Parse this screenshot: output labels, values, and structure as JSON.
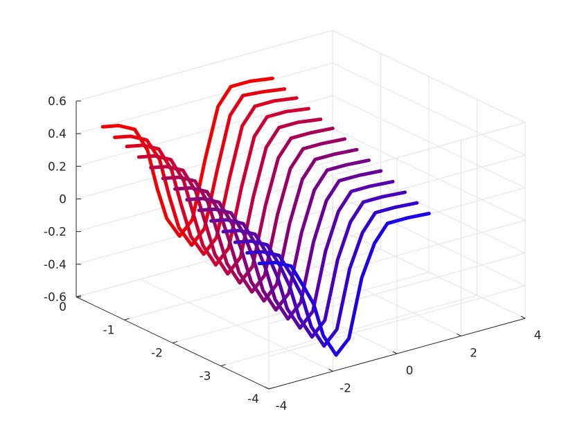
{
  "chart_data": {
    "type": "line",
    "projection": "3d",
    "grid": true,
    "title": "",
    "xlabel": "",
    "ylabel": "",
    "zlabel": "",
    "xlim": [
      -4,
      0
    ],
    "ylim": [
      -4,
      4
    ],
    "zlim": [
      -0.6,
      0.6
    ],
    "x_ticks": [
      {
        "value": 0,
        "label": "0"
      },
      {
        "value": -1,
        "label": "-1"
      },
      {
        "value": -2,
        "label": "-2"
      },
      {
        "value": -3,
        "label": "-3"
      },
      {
        "value": -4,
        "label": "-4"
      }
    ],
    "y_ticks": [
      {
        "value": -4,
        "label": "-4"
      },
      {
        "value": -2,
        "label": "-2"
      },
      {
        "value": 0,
        "label": "0"
      },
      {
        "value": 2,
        "label": "2"
      },
      {
        "value": 4,
        "label": "4"
      }
    ],
    "z_ticks": [
      {
        "value": -0.6,
        "label": "-0.6"
      },
      {
        "value": -0.4,
        "label": "-0.4"
      },
      {
        "value": -0.2,
        "label": "-0.2"
      },
      {
        "value": 0,
        "label": "0"
      },
      {
        "value": 0.2,
        "label": "0.2"
      },
      {
        "value": 0.4,
        "label": "0.4"
      },
      {
        "value": 0.6,
        "label": "0.6"
      }
    ],
    "color_map": {
      "start": "#ff0000",
      "end": "#0000ff"
    },
    "series": [
      {
        "color": "#f00000",
        "points": [
          [
            -0.55,
            -4,
            0.52
          ],
          [
            -0.55,
            -3.5,
            0.5
          ],
          [
            -0.55,
            -3,
            0.45
          ],
          [
            -0.55,
            -2.6,
            0.3
          ],
          [
            -0.55,
            -2.3,
            0.05
          ],
          [
            -0.55,
            -2,
            -0.15
          ],
          [
            -0.55,
            -1.6,
            -0.28
          ],
          [
            -0.55,
            -1.2,
            -0.2
          ],
          [
            -0.55,
            -0.8,
            0.15
          ],
          [
            -0.55,
            -0.4,
            0.45
          ],
          [
            -0.55,
            0,
            0.55
          ],
          [
            -0.55,
            0.6,
            0.55
          ],
          [
            -0.55,
            1.3,
            0.53
          ]
        ]
      },
      {
        "color": "#e6000f",
        "points": [
          [
            -0.8,
            -4,
            0.49
          ],
          [
            -0.8,
            -3.5,
            0.47
          ],
          [
            -0.8,
            -3,
            0.42
          ],
          [
            -0.8,
            -2.6,
            0.28
          ],
          [
            -0.8,
            -2.3,
            0.04
          ],
          [
            -0.8,
            -2,
            -0.17
          ],
          [
            -0.8,
            -1.6,
            -0.3
          ],
          [
            -0.8,
            -1.2,
            -0.22
          ],
          [
            -0.8,
            -0.8,
            0.12
          ],
          [
            -0.8,
            -0.4,
            0.43
          ],
          [
            -0.8,
            0,
            0.53
          ],
          [
            -0.8,
            0.6,
            0.52
          ],
          [
            -0.8,
            1.3,
            0.5
          ]
        ]
      },
      {
        "color": "#db0020",
        "points": [
          [
            -1.05,
            -4,
            0.47
          ],
          [
            -1.05,
            -3.5,
            0.45
          ],
          [
            -1.05,
            -3,
            0.4
          ],
          [
            -1.05,
            -2.6,
            0.25
          ],
          [
            -1.05,
            -2.3,
            0.02
          ],
          [
            -1.05,
            -2,
            -0.19
          ],
          [
            -1.05,
            -1.6,
            -0.32
          ],
          [
            -1.05,
            -1.2,
            -0.24
          ],
          [
            -1.05,
            -0.8,
            0.1
          ],
          [
            -1.05,
            -0.4,
            0.4
          ],
          [
            -1.05,
            0,
            0.5
          ],
          [
            -1.05,
            0.6,
            0.5
          ],
          [
            -1.05,
            1.3,
            0.48
          ]
        ]
      },
      {
        "color": "#cc0033",
        "points": [
          [
            -1.3,
            -4,
            0.44
          ],
          [
            -1.3,
            -3.5,
            0.42
          ],
          [
            -1.3,
            -3,
            0.37
          ],
          [
            -1.3,
            -2.6,
            0.22
          ],
          [
            -1.3,
            -2.3,
            0
          ],
          [
            -1.3,
            -2,
            -0.21
          ],
          [
            -1.3,
            -1.6,
            -0.35
          ],
          [
            -1.3,
            -1.2,
            -0.27
          ],
          [
            -1.3,
            -0.8,
            0.08
          ],
          [
            -1.3,
            -0.4,
            0.37
          ],
          [
            -1.3,
            0,
            0.47
          ],
          [
            -1.3,
            0.6,
            0.47
          ],
          [
            -1.3,
            1.3,
            0.45
          ]
        ]
      },
      {
        "color": "#bb0044",
        "points": [
          [
            -1.55,
            -4,
            0.41
          ],
          [
            -1.55,
            -3.5,
            0.39
          ],
          [
            -1.55,
            -3,
            0.34
          ],
          [
            -1.55,
            -2.6,
            0.19
          ],
          [
            -1.55,
            -2.3,
            -0.02
          ],
          [
            -1.55,
            -2,
            -0.23
          ],
          [
            -1.55,
            -1.6,
            -0.37
          ],
          [
            -1.55,
            -1.2,
            -0.29
          ],
          [
            -1.55,
            -0.8,
            0.06
          ],
          [
            -1.55,
            -0.4,
            0.34
          ],
          [
            -1.55,
            0,
            0.44
          ],
          [
            -1.55,
            0.6,
            0.44
          ],
          [
            -1.55,
            1.3,
            0.42
          ]
        ]
      },
      {
        "color": "#aa0055",
        "points": [
          [
            -1.8,
            -4,
            0.38
          ],
          [
            -1.8,
            -3.5,
            0.36
          ],
          [
            -1.8,
            -3,
            0.31
          ],
          [
            -1.8,
            -2.6,
            0.16
          ],
          [
            -1.8,
            -2.3,
            -0.04
          ],
          [
            -1.8,
            -2,
            -0.25
          ],
          [
            -1.8,
            -1.6,
            -0.39
          ],
          [
            -1.8,
            -1.2,
            -0.31
          ],
          [
            -1.8,
            -0.8,
            0.04
          ],
          [
            -1.8,
            -0.4,
            0.31
          ],
          [
            -1.8,
            0,
            0.41
          ],
          [
            -1.8,
            0.6,
            0.41
          ],
          [
            -1.8,
            1.3,
            0.4
          ]
        ]
      },
      {
        "color": "#990066",
        "points": [
          [
            -2.05,
            -4,
            0.35
          ],
          [
            -2.05,
            -3.5,
            0.33
          ],
          [
            -2.05,
            -3,
            0.28
          ],
          [
            -2.05,
            -2.6,
            0.13
          ],
          [
            -2.05,
            -2.3,
            -0.06
          ],
          [
            -2.05,
            -2,
            -0.27
          ],
          [
            -2.05,
            -1.6,
            -0.41
          ],
          [
            -2.05,
            -1.2,
            -0.33
          ],
          [
            -2.05,
            -0.8,
            0.02
          ],
          [
            -2.05,
            -0.4,
            0.28
          ],
          [
            -2.05,
            0,
            0.38
          ],
          [
            -2.05,
            0.6,
            0.38
          ],
          [
            -2.05,
            1.3,
            0.37
          ]
        ]
      },
      {
        "color": "#880077",
        "points": [
          [
            -2.3,
            -4,
            0.32
          ],
          [
            -2.3,
            -3.5,
            0.3
          ],
          [
            -2.3,
            -3,
            0.25
          ],
          [
            -2.3,
            -2.6,
            0.1
          ],
          [
            -2.3,
            -2.3,
            -0.08
          ],
          [
            -2.3,
            -2,
            -0.29
          ],
          [
            -2.3,
            -1.6,
            -0.43
          ],
          [
            -2.3,
            -1.2,
            -0.35
          ],
          [
            -2.3,
            -0.8,
            0
          ],
          [
            -2.3,
            -0.4,
            0.25
          ],
          [
            -2.3,
            0,
            0.35
          ],
          [
            -2.3,
            0.6,
            0.35
          ],
          [
            -2.3,
            1.3,
            0.34
          ]
        ]
      },
      {
        "color": "#770088",
        "points": [
          [
            -2.55,
            -4,
            0.29
          ],
          [
            -2.55,
            -3.5,
            0.27
          ],
          [
            -2.55,
            -3,
            0.22
          ],
          [
            -2.55,
            -2.6,
            0.07
          ],
          [
            -2.55,
            -2.3,
            -0.1
          ],
          [
            -2.55,
            -2,
            -0.31
          ],
          [
            -2.55,
            -1.6,
            -0.45
          ],
          [
            -2.55,
            -1.2,
            -0.37
          ],
          [
            -2.55,
            -0.8,
            -0.02
          ],
          [
            -2.55,
            -0.4,
            0.22
          ],
          [
            -2.55,
            0,
            0.32
          ],
          [
            -2.55,
            0.6,
            0.32
          ],
          [
            -2.55,
            1.3,
            0.31
          ]
        ]
      },
      {
        "color": "#660099",
        "points": [
          [
            -2.8,
            -4,
            0.26
          ],
          [
            -2.8,
            -3.5,
            0.24
          ],
          [
            -2.8,
            -3,
            0.19
          ],
          [
            -2.8,
            -2.6,
            0.04
          ],
          [
            -2.8,
            -2.3,
            -0.12
          ],
          [
            -2.8,
            -2,
            -0.33
          ],
          [
            -2.8,
            -1.6,
            -0.47
          ],
          [
            -2.8,
            -1.2,
            -0.39
          ],
          [
            -2.8,
            -0.8,
            -0.04
          ],
          [
            -2.8,
            -0.4,
            0.19
          ],
          [
            -2.8,
            0,
            0.29
          ],
          [
            -2.8,
            0.6,
            0.29
          ],
          [
            -2.8,
            1.3,
            0.28
          ]
        ]
      },
      {
        "color": "#5500aa",
        "points": [
          [
            -3.05,
            -4,
            0.23
          ],
          [
            -3.05,
            -3.5,
            0.21
          ],
          [
            -3.05,
            -3,
            0.16
          ],
          [
            -3.05,
            -2.6,
            0.01
          ],
          [
            -3.05,
            -2.3,
            -0.14
          ],
          [
            -3.05,
            -2,
            -0.35
          ],
          [
            -3.05,
            -1.6,
            -0.49
          ],
          [
            -3.05,
            -1.2,
            -0.41
          ],
          [
            -3.05,
            -0.8,
            -0.06
          ],
          [
            -3.05,
            -0.4,
            0.16
          ],
          [
            -3.05,
            0,
            0.26
          ],
          [
            -3.05,
            0.6,
            0.26
          ],
          [
            -3.05,
            1.3,
            0.25
          ]
        ]
      },
      {
        "color": "#4400bb",
        "points": [
          [
            -3.3,
            -4,
            0.2
          ],
          [
            -3.3,
            -3.5,
            0.18
          ],
          [
            -3.3,
            -3,
            0.13
          ],
          [
            -3.3,
            -2.6,
            -0.02
          ],
          [
            -3.3,
            -2.3,
            -0.16
          ],
          [
            -3.3,
            -2,
            -0.37
          ],
          [
            -3.3,
            -1.6,
            -0.51
          ],
          [
            -3.3,
            -1.2,
            -0.43
          ],
          [
            -3.3,
            -0.8,
            -0.08
          ],
          [
            -3.3,
            -0.4,
            0.13
          ],
          [
            -3.3,
            0,
            0.23
          ],
          [
            -3.3,
            0.6,
            0.23
          ],
          [
            -3.3,
            1.3,
            0.22
          ]
        ]
      },
      {
        "color": "#3300cc",
        "points": [
          [
            -3.55,
            -4,
            0.17
          ],
          [
            -3.55,
            -3.5,
            0.15
          ],
          [
            -3.55,
            -3,
            0.1
          ],
          [
            -3.55,
            -2.6,
            -0.05
          ],
          [
            -3.55,
            -2.3,
            -0.18
          ],
          [
            -3.55,
            -2,
            -0.39
          ],
          [
            -3.55,
            -1.6,
            -0.53
          ],
          [
            -3.55,
            -1.2,
            -0.45
          ],
          [
            -3.55,
            -0.8,
            -0.1
          ],
          [
            -3.55,
            -0.4,
            0.1
          ],
          [
            -3.55,
            0,
            0.2
          ],
          [
            -3.55,
            0.6,
            0.2
          ],
          [
            -3.55,
            1.3,
            0.19
          ]
        ]
      },
      {
        "color": "#1a00e6",
        "points": [
          [
            -3.8,
            -4,
            0.14
          ],
          [
            -3.8,
            -3.5,
            0.12
          ],
          [
            -3.8,
            -3,
            0.07
          ],
          [
            -3.8,
            -2.6,
            -0.08
          ],
          [
            -3.8,
            -2.3,
            -0.2
          ],
          [
            -3.8,
            -2,
            -0.41
          ],
          [
            -3.8,
            -1.6,
            -0.55
          ],
          [
            -3.8,
            -1.2,
            -0.47
          ],
          [
            -3.8,
            -0.8,
            -0.12
          ],
          [
            -3.8,
            -0.4,
            0.07
          ],
          [
            -3.8,
            0,
            0.17
          ],
          [
            -3.8,
            0.6,
            0.17
          ],
          [
            -3.8,
            1.3,
            0.16
          ]
        ]
      }
    ]
  }
}
